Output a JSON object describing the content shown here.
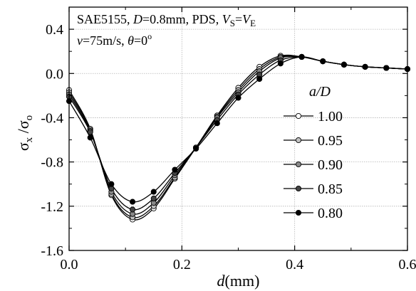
{
  "chart_data": {
    "type": "line",
    "annotation": {
      "line1": [
        {
          "t": "SAE5155, ",
          "i": false
        },
        {
          "t": "D",
          "i": true
        },
        {
          "t": "=0.8mm, PDS, ",
          "i": false
        },
        {
          "t": "V",
          "i": true
        },
        {
          "t": "S",
          "i": false,
          "sub": true
        },
        {
          "t": "=",
          "i": false
        },
        {
          "t": "V",
          "i": true
        },
        {
          "t": "E",
          "i": false,
          "sub": true
        }
      ],
      "line2": [
        {
          "t": "v",
          "i": true
        },
        {
          "t": "=75m/s, ",
          "i": false
        },
        {
          "t": "θ",
          "i": true
        },
        {
          "t": "=0",
          "i": false
        },
        {
          "t": "o",
          "i": false,
          "sup": true
        }
      ]
    },
    "xlabel": {
      "var": "d",
      "unit": "(mm)"
    },
    "ylabel": {
      "num": "σ",
      "num_sub": "x",
      "sep": " /",
      "den": "σ",
      "den_sub": "o"
    },
    "xlim": [
      0.0,
      0.6
    ],
    "ylim": [
      -1.6,
      0.6
    ],
    "xticks": [
      0.0,
      0.2,
      0.4,
      0.6
    ],
    "xtick_labels": [
      "0.0",
      "0.2",
      "0.4",
      "0.6"
    ],
    "yticks": [
      -1.6,
      -1.2,
      -0.8,
      -0.4,
      0.0,
      0.4
    ],
    "ytick_labels": [
      "-1.6",
      "-1.2",
      "-0.8",
      "-0.4",
      "0.0",
      "0.4"
    ],
    "grid": true,
    "legend": {
      "title_var": "a",
      "title_rest": "/D",
      "placement": "right"
    },
    "series": [
      {
        "name": "1.00",
        "color": "#ffffff",
        "x": [
          0.0,
          0.0375,
          0.075,
          0.1125,
          0.15,
          0.1875,
          0.225,
          0.2625,
          0.3,
          0.3375,
          0.375,
          0.4125,
          0.45,
          0.4875,
          0.525,
          0.5625,
          0.6
        ],
        "y": [
          -0.15,
          -0.5,
          -1.1,
          -1.32,
          -1.22,
          -0.95,
          -0.67,
          -0.38,
          -0.13,
          0.06,
          0.16,
          0.15,
          0.11,
          0.08,
          0.06,
          0.05,
          0.04
        ]
      },
      {
        "name": "0.95",
        "color": "#c0c0c0",
        "x": [
          0.0,
          0.0375,
          0.075,
          0.1125,
          0.15,
          0.1875,
          0.225,
          0.2625,
          0.3,
          0.3375,
          0.375,
          0.4125,
          0.45,
          0.4875,
          0.525,
          0.5625,
          0.6
        ],
        "y": [
          -0.17,
          -0.51,
          -1.09,
          -1.3,
          -1.2,
          -0.94,
          -0.67,
          -0.39,
          -0.15,
          0.04,
          0.15,
          0.15,
          0.11,
          0.08,
          0.06,
          0.05,
          0.04
        ]
      },
      {
        "name": "0.90",
        "color": "#888888",
        "x": [
          0.0,
          0.0375,
          0.075,
          0.1125,
          0.15,
          0.1875,
          0.225,
          0.2625,
          0.3,
          0.3375,
          0.375,
          0.4125,
          0.45,
          0.4875,
          0.525,
          0.5625,
          0.6
        ],
        "y": [
          -0.19,
          -0.52,
          -1.07,
          -1.27,
          -1.17,
          -0.92,
          -0.67,
          -0.4,
          -0.17,
          0.02,
          0.14,
          0.15,
          0.11,
          0.08,
          0.06,
          0.05,
          0.04
        ]
      },
      {
        "name": "0.85",
        "color": "#444444",
        "x": [
          0.0,
          0.0375,
          0.075,
          0.1125,
          0.15,
          0.1875,
          0.225,
          0.2625,
          0.3,
          0.3375,
          0.375,
          0.4125,
          0.45,
          0.4875,
          0.525,
          0.5625,
          0.6
        ],
        "y": [
          -0.21,
          -0.53,
          -1.04,
          -1.23,
          -1.13,
          -0.9,
          -0.67,
          -0.42,
          -0.19,
          -0.01,
          0.12,
          0.15,
          0.11,
          0.08,
          0.06,
          0.05,
          0.04
        ]
      },
      {
        "name": "0.80",
        "color": "#000000",
        "x": [
          0.0,
          0.0375,
          0.075,
          0.1125,
          0.15,
          0.1875,
          0.225,
          0.2625,
          0.3,
          0.3375,
          0.375,
          0.4125,
          0.45,
          0.4875,
          0.525,
          0.5625,
          0.6
        ],
        "y": [
          -0.25,
          -0.58,
          -1.0,
          -1.16,
          -1.07,
          -0.87,
          -0.68,
          -0.45,
          -0.22,
          -0.05,
          0.09,
          0.15,
          0.11,
          0.08,
          0.06,
          0.05,
          0.04
        ]
      }
    ]
  }
}
